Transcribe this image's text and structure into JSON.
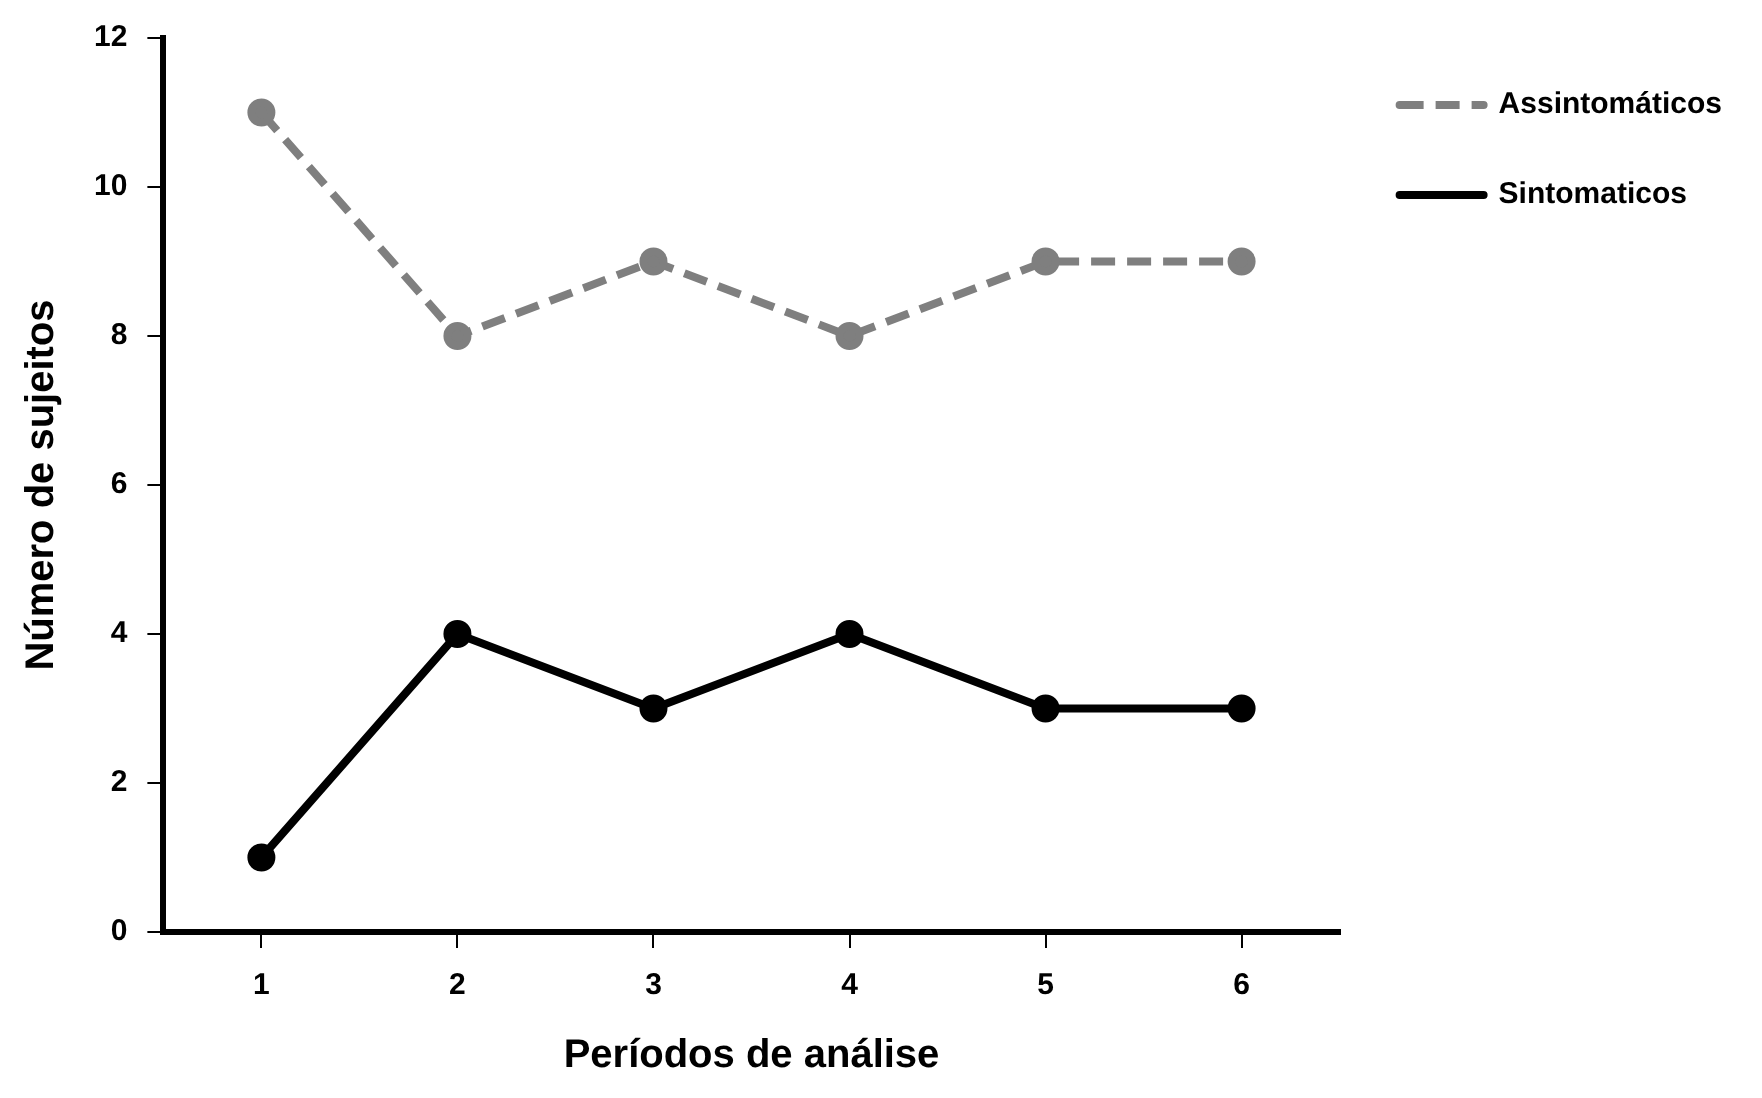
{
  "chart_data": {
    "type": "line",
    "xlabel": "Períodos de análise",
    "ylabel": "Número de sujeitos",
    "categories": [
      "1",
      "2",
      "3",
      "4",
      "5",
      "6"
    ],
    "series": [
      {
        "name": "Assintomáticos",
        "color": "#7f7f7f",
        "values": [
          11,
          8,
          9,
          8,
          9,
          9
        ],
        "line_style": "dashed"
      },
      {
        "name": "Sintomaticos",
        "color": "#000000",
        "values": [
          1,
          4,
          3,
          4,
          3,
          3
        ],
        "line_style": "solid"
      }
    ],
    "ylim": [
      0,
      12
    ],
    "yticks": [
      0,
      2,
      4,
      6,
      8,
      10,
      12
    ],
    "grid": false,
    "legend": "top right",
    "marker": "circle"
  }
}
